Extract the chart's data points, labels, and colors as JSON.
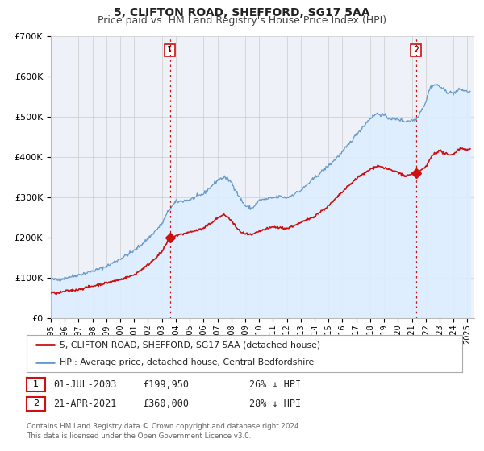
{
  "title": "5, CLIFTON ROAD, SHEFFORD, SG17 5AA",
  "subtitle": "Price paid vs. HM Land Registry's House Price Index (HPI)",
  "ylim": [
    0,
    700000
  ],
  "xlim_start": 1995.0,
  "xlim_end": 2025.5,
  "yticks": [
    0,
    100000,
    200000,
    300000,
    400000,
    500000,
    600000,
    700000
  ],
  "ytick_labels": [
    "£0",
    "£100K",
    "£200K",
    "£300K",
    "£400K",
    "£500K",
    "£600K",
    "£700K"
  ],
  "xticks": [
    1995,
    1996,
    1997,
    1998,
    1999,
    2000,
    2001,
    2002,
    2003,
    2004,
    2005,
    2006,
    2007,
    2008,
    2009,
    2010,
    2011,
    2012,
    2013,
    2014,
    2015,
    2016,
    2017,
    2018,
    2019,
    2020,
    2021,
    2022,
    2023,
    2024,
    2025
  ],
  "red_line_color": "#cc1111",
  "blue_line_color": "#6699cc",
  "blue_fill_color": "#ddeeff",
  "marker1_x": 2003.58,
  "marker1_y": 199950,
  "marker2_x": 2021.3,
  "marker2_y": 360000,
  "vline1_x": 2003.58,
  "vline2_x": 2021.3,
  "vline_color": "#cc1111",
  "legend_red_label": "5, CLIFTON ROAD, SHEFFORD, SG17 5AA (detached house)",
  "legend_blue_label": "HPI: Average price, detached house, Central Bedfordshire",
  "table_row1_num": "1",
  "table_row1_date": "01-JUL-2003",
  "table_row1_price": "£199,950",
  "table_row1_pct": "26% ↓ HPI",
  "table_row2_num": "2",
  "table_row2_date": "21-APR-2021",
  "table_row2_price": "£360,000",
  "table_row2_pct": "28% ↓ HPI",
  "footnote": "Contains HM Land Registry data © Crown copyright and database right 2024.\nThis data is licensed under the Open Government Licence v3.0.",
  "title_fontsize": 10,
  "subtitle_fontsize": 9,
  "plot_bg_color": "#eef2f8",
  "grid_color": "#cccccc"
}
